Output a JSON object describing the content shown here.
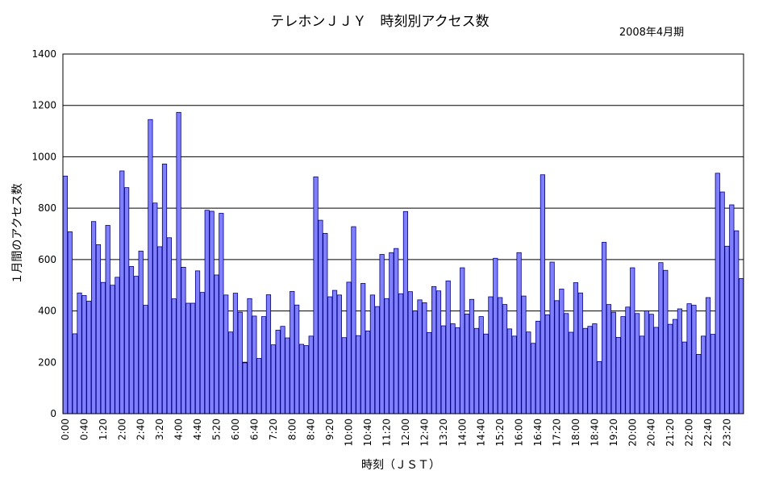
{
  "chart_data": {
    "type": "bar",
    "title": "テレホンＪＪＹ　時刻別アクセス数",
    "subtitle": "2008年4月期",
    "xlabel": "時刻（ＪＳＴ）",
    "ylabel": "１月間のアクセス数",
    "ylim": [
      0,
      1400
    ],
    "yticks": [
      0,
      200,
      400,
      600,
      800,
      1000,
      1200,
      1400
    ],
    "grid": true,
    "bar_color": "#8080ff",
    "bar_edge_color": "#000080",
    "x_tick_labels": [
      "0:00",
      "0:40",
      "1:20",
      "2:00",
      "2:40",
      "3:20",
      "4:00",
      "4:40",
      "5:20",
      "6:00",
      "6:40",
      "7:20",
      "8:00",
      "8:40",
      "9:20",
      "10:00",
      "10:40",
      "11:20",
      "12:00",
      "12:40",
      "13:20",
      "14:00",
      "14:40",
      "15:20",
      "16:00",
      "16:40",
      "17:20",
      "18:00",
      "18:40",
      "19:20",
      "20:00",
      "20:40",
      "21:20",
      "22:00",
      "22:40",
      "23:20"
    ],
    "values": [
      925,
      708,
      311,
      470,
      460,
      438,
      748,
      658,
      511,
      733,
      500,
      531,
      945,
      880,
      573,
      535,
      633,
      422,
      1145,
      820,
      650,
      972,
      685,
      447,
      1173,
      570,
      430,
      430,
      556,
      472,
      792,
      788,
      540,
      780,
      462,
      318,
      469,
      395,
      198,
      448,
      380,
      215,
      378,
      463,
      268,
      325,
      340,
      295,
      476,
      423,
      270,
      265,
      302,
      922,
      753,
      702,
      455,
      480,
      462,
      296,
      512,
      728,
      304,
      507,
      322,
      462,
      417,
      620,
      448,
      627,
      643,
      467,
      787,
      475,
      400,
      443,
      432,
      316,
      495,
      478,
      342,
      517,
      350,
      335,
      568,
      388,
      445,
      332,
      378,
      310,
      455,
      605,
      452,
      425,
      330,
      302,
      627,
      458,
      318,
      274,
      360,
      930,
      385,
      590,
      440,
      485,
      390,
      317,
      510,
      470,
      332,
      340,
      350,
      203,
      667,
      425,
      395,
      297,
      378,
      415,
      568,
      390,
      302,
      400,
      387,
      336,
      588,
      558,
      348,
      367,
      408,
      279,
      428,
      422,
      231,
      302,
      452,
      309,
      936,
      863,
      652,
      813,
      712,
      526
    ]
  }
}
